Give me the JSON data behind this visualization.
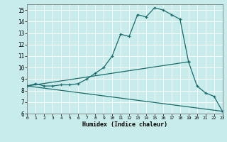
{
  "title": "",
  "xlabel": "Humidex (Indice chaleur)",
  "xlim": [
    0,
    23
  ],
  "ylim": [
    6,
    15.5
  ],
  "xticks": [
    0,
    1,
    2,
    3,
    4,
    5,
    6,
    7,
    8,
    9,
    10,
    11,
    12,
    13,
    14,
    15,
    16,
    17,
    18,
    19,
    20,
    21,
    22,
    23
  ],
  "yticks": [
    6,
    7,
    8,
    9,
    10,
    11,
    12,
    13,
    14,
    15
  ],
  "bg_color": "#c8ecec",
  "line_color": "#1a6b6b",
  "series1_x": [
    0,
    1,
    2,
    3,
    4,
    5,
    6,
    7,
    8,
    9,
    10,
    11,
    12,
    13,
    14,
    15,
    16,
    17,
    18,
    19,
    20,
    21,
    22,
    23
  ],
  "series1_y": [
    8.4,
    8.6,
    8.4,
    8.4,
    8.5,
    8.5,
    8.6,
    9.0,
    9.5,
    10.0,
    11.0,
    12.9,
    12.7,
    14.6,
    14.4,
    15.2,
    15.0,
    14.6,
    14.2,
    10.5,
    8.4,
    7.8,
    7.5,
    6.2
  ],
  "series2_x": [
    0,
    23
  ],
  "series2_y": [
    8.4,
    6.2
  ],
  "series3_x": [
    0,
    19
  ],
  "series3_y": [
    8.4,
    10.5
  ]
}
